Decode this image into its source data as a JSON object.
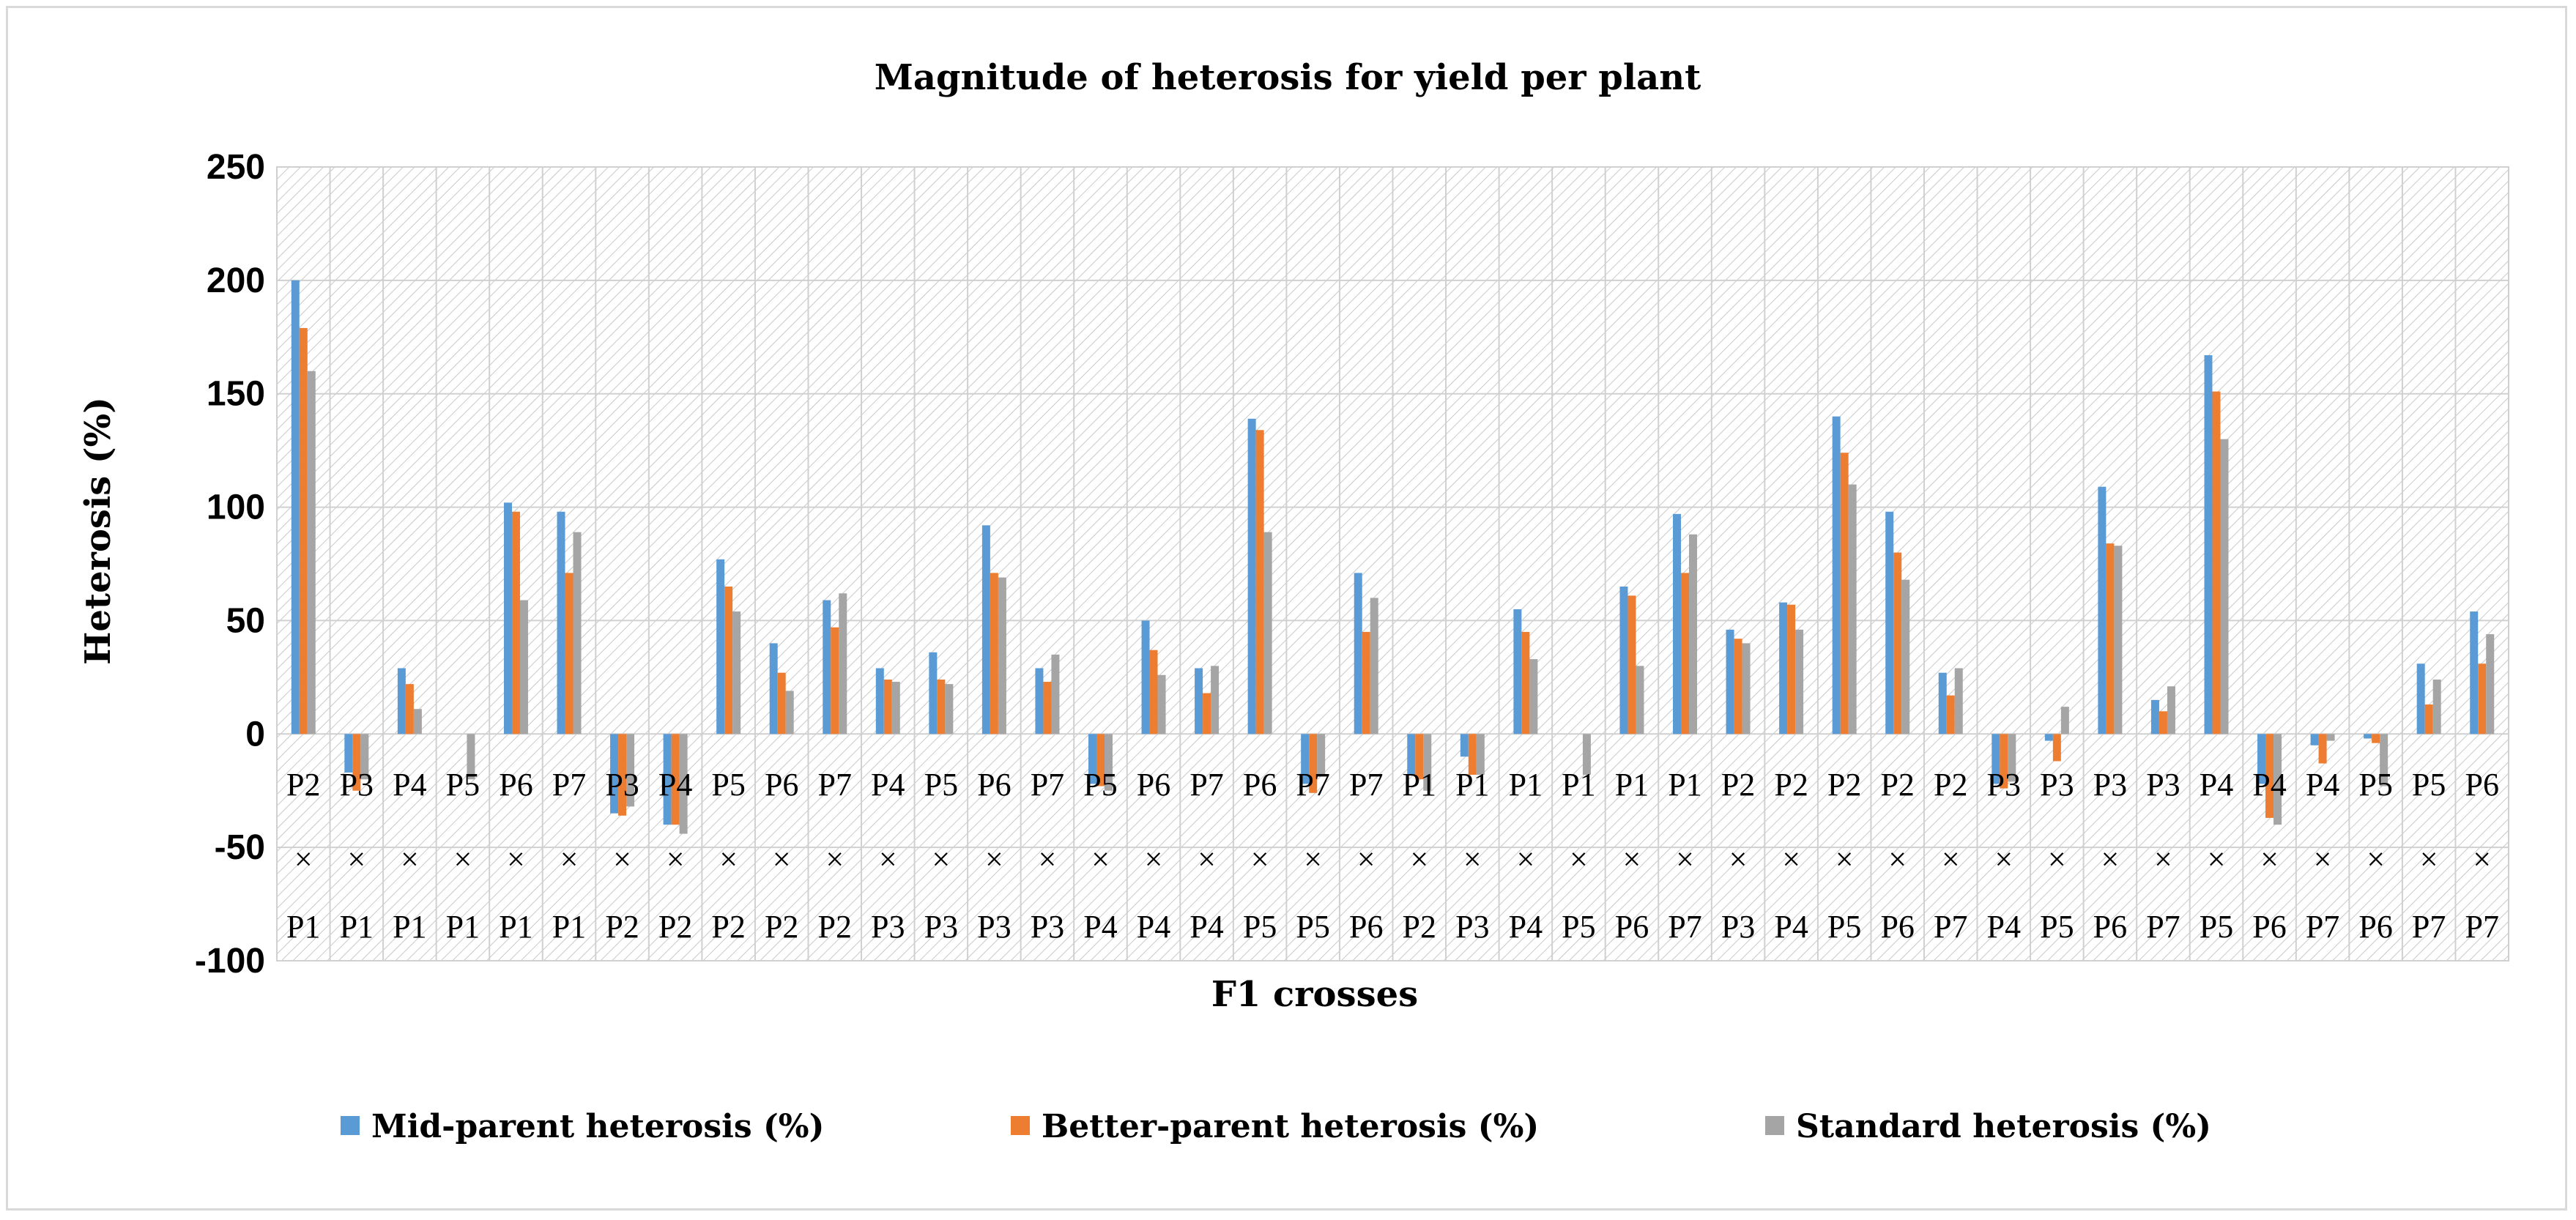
{
  "chart_data": {
    "type": "bar",
    "title": "Magnitude of heterosis for yield per plant",
    "xlabel": "F1 crosses",
    "ylabel": "Heterosis (%)",
    "ylim": [
      -100,
      250
    ],
    "yticks": [
      250,
      200,
      150,
      100,
      50,
      0,
      -50,
      -100
    ],
    "cross_symbol": "×",
    "categories": [
      {
        "top": "P2",
        "bottom": "P1"
      },
      {
        "top": "P3",
        "bottom": "P1"
      },
      {
        "top": "P4",
        "bottom": "P1"
      },
      {
        "top": "P5",
        "bottom": "P1"
      },
      {
        "top": "P6",
        "bottom": "P1"
      },
      {
        "top": "P7",
        "bottom": "P1"
      },
      {
        "top": "P3",
        "bottom": "P2"
      },
      {
        "top": "P4",
        "bottom": "P2"
      },
      {
        "top": "P5",
        "bottom": "P2"
      },
      {
        "top": "P6",
        "bottom": "P2"
      },
      {
        "top": "P7",
        "bottom": "P2"
      },
      {
        "top": "P4",
        "bottom": "P3"
      },
      {
        "top": "P5",
        "bottom": "P3"
      },
      {
        "top": "P6",
        "bottom": "P3"
      },
      {
        "top": "P7",
        "bottom": "P3"
      },
      {
        "top": "P5",
        "bottom": "P4"
      },
      {
        "top": "P6",
        "bottom": "P4"
      },
      {
        "top": "P7",
        "bottom": "P4"
      },
      {
        "top": "P6",
        "bottom": "P5"
      },
      {
        "top": "P7",
        "bottom": "P5"
      },
      {
        "top": "P7",
        "bottom": "P6"
      },
      {
        "top": "P1",
        "bottom": "P2"
      },
      {
        "top": "P1",
        "bottom": "P3"
      },
      {
        "top": "P1",
        "bottom": "P4"
      },
      {
        "top": "P1",
        "bottom": "P5"
      },
      {
        "top": "P1",
        "bottom": "P6"
      },
      {
        "top": "P1",
        "bottom": "P7"
      },
      {
        "top": "P2",
        "bottom": "P3"
      },
      {
        "top": "P2",
        "bottom": "P4"
      },
      {
        "top": "P2",
        "bottom": "P5"
      },
      {
        "top": "P2",
        "bottom": "P6"
      },
      {
        "top": "P2",
        "bottom": "P7"
      },
      {
        "top": "P3",
        "bottom": "P4"
      },
      {
        "top": "P3",
        "bottom": "P5"
      },
      {
        "top": "P3",
        "bottom": "P6"
      },
      {
        "top": "P3",
        "bottom": "P7"
      },
      {
        "top": "P4",
        "bottom": "P5"
      },
      {
        "top": "P4",
        "bottom": "P6"
      },
      {
        "top": "P4",
        "bottom": "P7"
      },
      {
        "top": "P5",
        "bottom": "P6"
      },
      {
        "top": "P5",
        "bottom": "P7"
      },
      {
        "top": "P6",
        "bottom": "P7"
      }
    ],
    "series": [
      {
        "name": "Mid-parent heterosis (%)",
        "color": "#5b9bd5",
        "values": [
          200,
          -17,
          29,
          0,
          102,
          98,
          -35,
          -40,
          77,
          40,
          59,
          29,
          36,
          92,
          29,
          -22,
          50,
          29,
          139,
          -22,
          71,
          -18,
          -10,
          55,
          0,
          65,
          97,
          46,
          58,
          140,
          98,
          27,
          -22,
          -3,
          109,
          15,
          167,
          -22,
          -5,
          -2,
          31,
          54
        ]
      },
      {
        "name": "Better-parent heterosis (%)",
        "color": "#ed7d31",
        "values": [
          179,
          -25,
          22,
          0,
          98,
          71,
          -36,
          -40,
          65,
          27,
          47,
          24,
          24,
          71,
          23,
          -23,
          37,
          18,
          134,
          -26,
          45,
          -20,
          -18,
          45,
          0,
          61,
          71,
          42,
          57,
          124,
          80,
          17,
          -24,
          -12,
          84,
          10,
          151,
          -37,
          -13,
          -4,
          13,
          31
        ]
      },
      {
        "name": "Standard heterosis (%)",
        "color": "#a5a5a5",
        "values": [
          160,
          -20,
          11,
          -20,
          59,
          89,
          -32,
          -44,
          54,
          19,
          62,
          23,
          22,
          69,
          35,
          -25,
          26,
          30,
          89,
          -18,
          60,
          -25,
          -18,
          33,
          -18,
          30,
          88,
          40,
          46,
          110,
          68,
          29,
          -21,
          12,
          83,
          21,
          130,
          -40,
          -3,
          -23,
          24,
          44
        ]
      }
    ],
    "legend_position": "bottom-center"
  }
}
